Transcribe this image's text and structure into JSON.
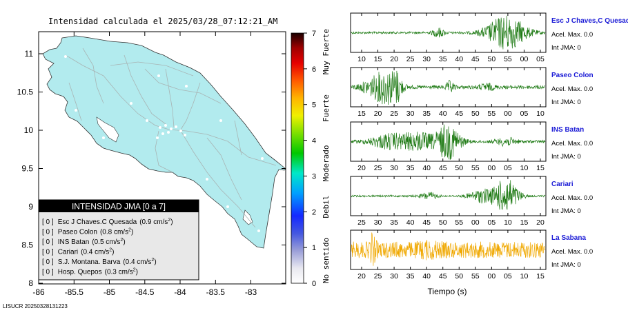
{
  "title": "Intensidad calculada el 2025/03/28_07:12:21_AM",
  "footer_code": "LISUCR 20250328131223",
  "map": {
    "lon_ticks": [
      "-86",
      "-85.5",
      "-85",
      "-84.5",
      "-84",
      "-83.5",
      "-83"
    ],
    "lat_ticks": [
      "11",
      "10.5",
      "10",
      "9.5",
      "9",
      "8.5",
      "8"
    ],
    "land_color": "#b2ebee",
    "road_color": "#a8b4b4"
  },
  "colorbar": {
    "ticks": [
      "0",
      "1",
      "2",
      "3",
      "4",
      "5",
      "6",
      "7"
    ],
    "labels": [
      "No sentido",
      "Debil",
      "Moderado",
      "Fuerte",
      "Muy Fuerte"
    ]
  },
  "legend": {
    "header": "INTENSIDAD JMA [0 a 7]",
    "items": [
      {
        "level": "[ 0 ]",
        "name": "Esc J Chaves.C Quesada",
        "value": "(0.9 cm/s",
        "exp": "2",
        "close": ")"
      },
      {
        "level": "[ 0 ]",
        "name": "Paseo Colon",
        "value": "(0.8 cm/s",
        "exp": "2",
        "close": ")"
      },
      {
        "level": "[ 0 ]",
        "name": "INS Batan",
        "value": "(0.5 cm/s",
        "exp": "2",
        "close": ")"
      },
      {
        "level": "[ 0 ]",
        "name": "Cariari",
        "value": "(0.4 cm/s",
        "exp": "2",
        "close": ")"
      },
      {
        "level": "[ 0 ]",
        "name": "S.J. Montana. Barva",
        "value": "(0.4 cm/s",
        "exp": "2",
        "close": ")"
      },
      {
        "level": "[ 0 ]",
        "name": "Hosp. Quepos",
        "value": "(0.3 cm/s",
        "exp": "2",
        "close": ")"
      }
    ]
  },
  "waveforms": [
    {
      "station": "Esc J Chaves,C Quesada",
      "accel": "Acel. Max. 0.0",
      "int": "Int JMA: 0",
      "color": "#1e7a14",
      "ticks": [
        "10",
        "15",
        "20",
        "25",
        "30",
        "35",
        "40",
        "45",
        "50",
        "55",
        "00",
        "05"
      ]
    },
    {
      "station": "Paseo Colon",
      "accel": "Acel. Max. 0.0",
      "int": "Int JMA: 0",
      "color": "#1e7a14",
      "ticks": [
        "15",
        "20",
        "25",
        "30",
        "35",
        "40",
        "45",
        "50",
        "55",
        "00",
        "05",
        "10"
      ]
    },
    {
      "station": "INS Batan",
      "accel": "Acel. Max. 0.0",
      "int": "Int JMA: 0",
      "color": "#1e7a14",
      "ticks": [
        "20",
        "25",
        "30",
        "35",
        "40",
        "45",
        "50",
        "55",
        "00",
        "05",
        "10",
        "15"
      ]
    },
    {
      "station": "Cariari",
      "accel": "Acel. Max. 0.0",
      "int": "Int JMA: 0",
      "color": "#1e7a14",
      "ticks": [
        "25",
        "30",
        "35",
        "40",
        "45",
        "50",
        "55",
        "00",
        "05",
        "10",
        "15",
        "20"
      ]
    },
    {
      "station": "La Sabana",
      "accel": "Acel. Max. 0.0",
      "int": "Int JMA: 0",
      "color": "#f0a800",
      "ticks": [
        "20",
        "25",
        "30",
        "35",
        "40",
        "45",
        "50",
        "55",
        "00",
        "05",
        "10",
        "15"
      ]
    }
  ],
  "x_axis_label": "Tiempo (s)"
}
